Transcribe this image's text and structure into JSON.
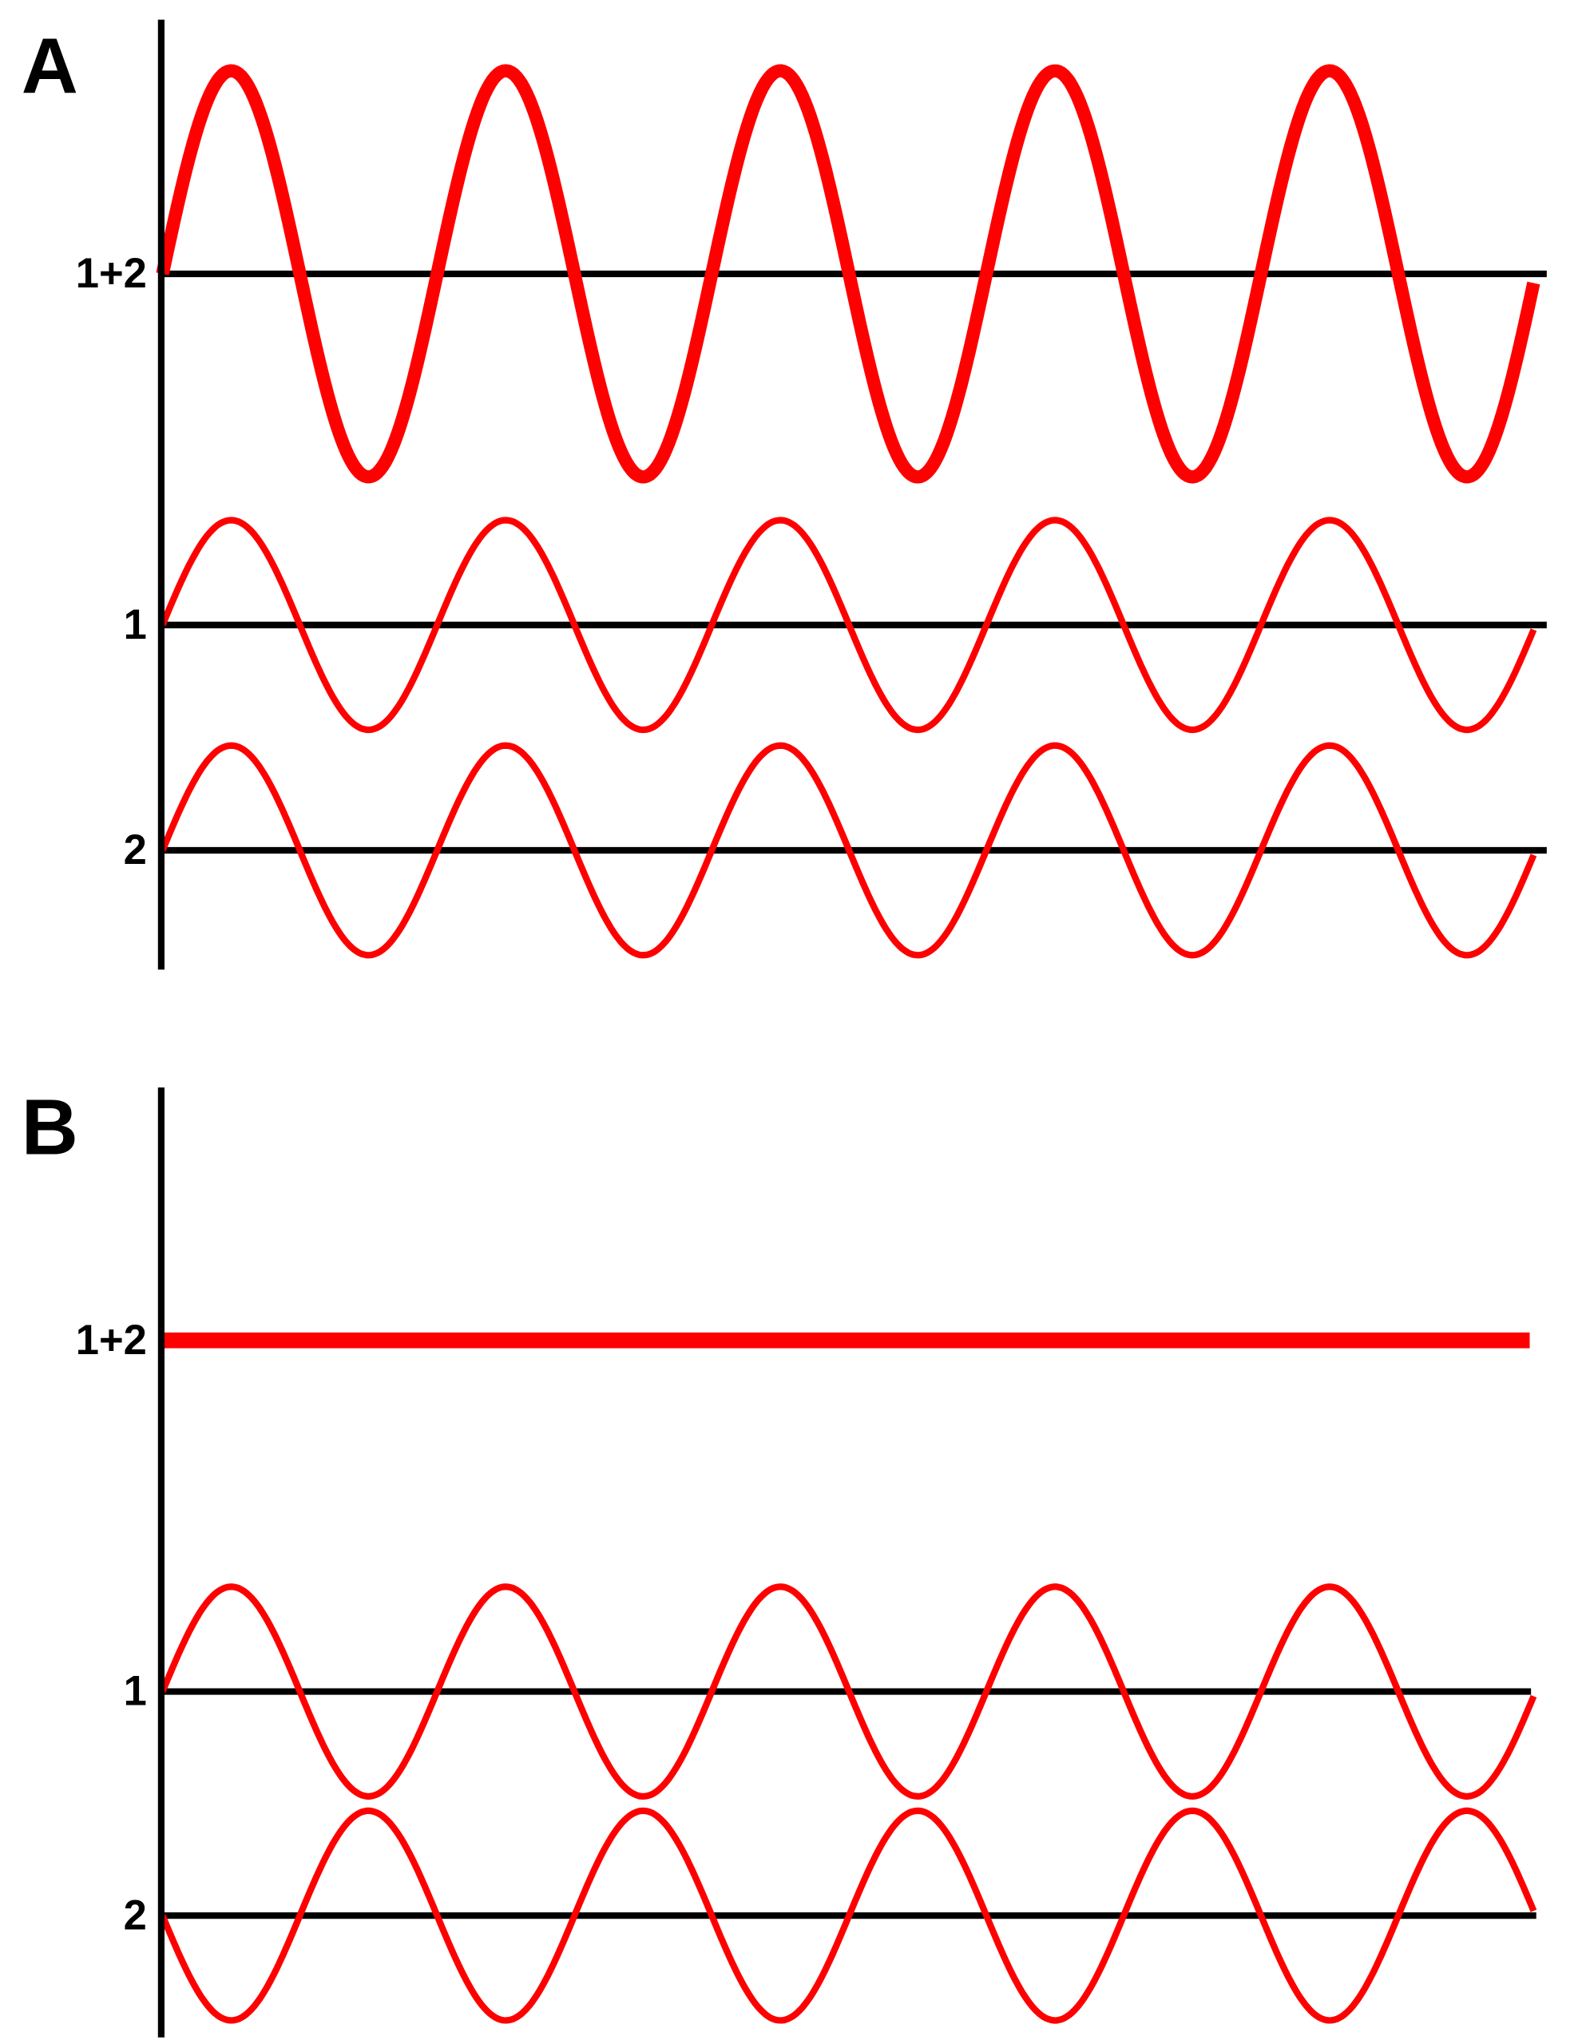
{
  "panels": [
    {
      "label": "A",
      "rows": [
        "1+2",
        "1",
        "2"
      ]
    },
    {
      "label": "B",
      "rows": [
        "1+2",
        "1",
        "2"
      ]
    }
  ]
}
